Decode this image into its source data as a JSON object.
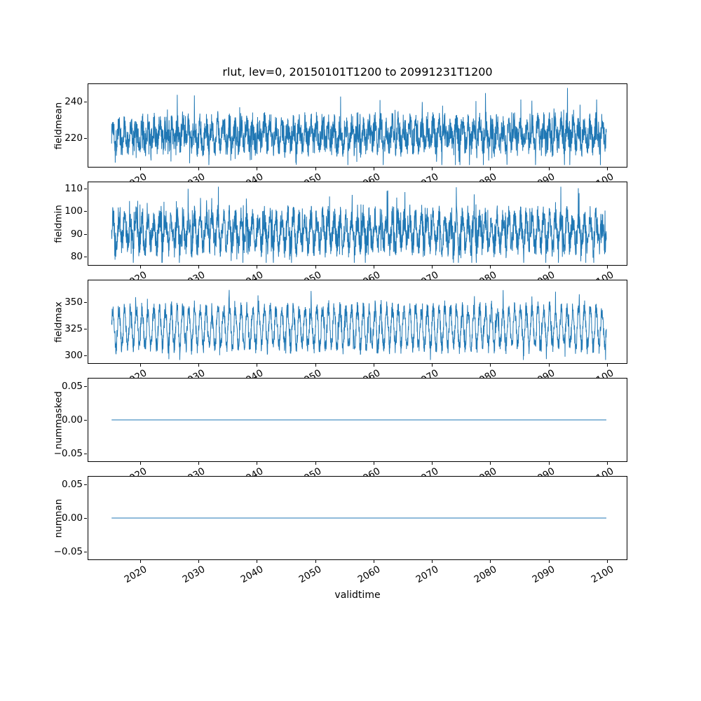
{
  "figure": {
    "line_color": "#1f77b4",
    "spine_color": "#000000",
    "background": "#ffffff"
  },
  "chart_data": {
    "type": "line",
    "title": "rlut, lev=0, 20150101T1200 to 20991231T1200",
    "xlabel": "validtime",
    "legend": "none",
    "grid": false,
    "x": {
      "start": 2015,
      "end": 2100,
      "xlim": [
        2011,
        2103.5
      ],
      "ticks": [
        2020,
        2030,
        2040,
        2050,
        2060,
        2070,
        2080,
        2090,
        2100
      ],
      "tick_rotation_deg": 30
    },
    "panels": [
      {
        "ylabel": "fieldmean",
        "ylim": [
          204,
          250
        ],
        "yticks": [
          220,
          240
        ],
        "ytick_labels": [
          "220",
          "240"
        ],
        "series_stats": {
          "mean": 222,
          "typical_low": 212,
          "typical_high": 234,
          "min": 205,
          "max": 248
        },
        "gen": {
          "base": 222,
          "seasonal_amp": 5,
          "noise_amp": 8,
          "spike_amp": 15,
          "spike_prob": 0.05,
          "points": 2600
        }
      },
      {
        "ylabel": "fieldmin",
        "ylim": [
          76,
          113
        ],
        "yticks": [
          80,
          90,
          100,
          110
        ],
        "ytick_labels": [
          "80",
          "90",
          "100",
          "110"
        ],
        "series_stats": {
          "mean": 91,
          "typical_low": 84,
          "typical_high": 101,
          "min": 77,
          "max": 111
        },
        "gen": {
          "base": 91,
          "seasonal_amp": 6,
          "noise_amp": 6,
          "spike_amp": 12,
          "spike_prob": 0.06,
          "points": 2600
        }
      },
      {
        "ylabel": "fieldmax",
        "ylim": [
          292,
          371
        ],
        "yticks": [
          300,
          325,
          350
        ],
        "ytick_labels": [
          "300",
          "325",
          "350"
        ],
        "series_stats": {
          "mean": 325,
          "typical_low": 300,
          "typical_high": 352,
          "min": 295,
          "max": 367
        },
        "gen": {
          "base": 326,
          "seasonal_amp": 18,
          "noise_amp": 8,
          "spike_amp": 14,
          "spike_prob": 0.05,
          "points": 2600
        }
      },
      {
        "ylabel": "nummasked",
        "ylim": [
          -0.0625,
          0.0625
        ],
        "yticks": [
          -0.05,
          0.0,
          0.05
        ],
        "ytick_labels": [
          "−0.05",
          "0.00",
          "0.05"
        ],
        "series_stats": {
          "constant": 0
        },
        "gen": {
          "base": 0,
          "seasonal_amp": 0,
          "noise_amp": 0,
          "spike_amp": 0,
          "spike_prob": 0,
          "points": 200
        }
      },
      {
        "ylabel": "numnan",
        "ylim": [
          -0.0625,
          0.0625
        ],
        "yticks": [
          -0.05,
          0.0,
          0.05
        ],
        "ytick_labels": [
          "−0.05",
          "0.00",
          "0.05"
        ],
        "series_stats": {
          "constant": 0
        },
        "gen": {
          "base": 0,
          "seasonal_amp": 0,
          "noise_amp": 0,
          "spike_amp": 0,
          "spike_prob": 0,
          "points": 200
        }
      }
    ]
  }
}
